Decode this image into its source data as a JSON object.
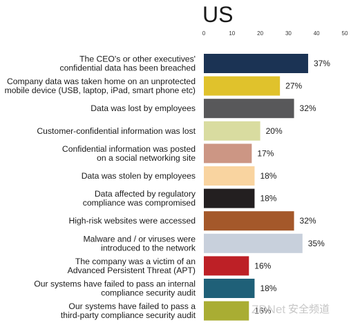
{
  "chart_data": {
    "type": "bar",
    "orientation": "horizontal",
    "title": "US",
    "xlim": [
      0,
      50
    ],
    "xticks": [
      "0",
      "10",
      "20",
      "30",
      "40",
      "50"
    ],
    "value_suffix": "%",
    "categories": [
      [
        "The CEO's or other executives'",
        "confidential data has been breached"
      ],
      [
        "Company data was taken home on an unprotected",
        "mobile device (USB, laptop, iPad, smart phone etc)"
      ],
      [
        "Data was lost by employees"
      ],
      [
        "Customer-confidential information was lost"
      ],
      [
        "Confidential information was posted",
        "on a social networking site"
      ],
      [
        "Data was stolen by employees"
      ],
      [
        "Data affected by regulatory",
        "compliance was compromised"
      ],
      [
        "High-risk websites were accessed"
      ],
      [
        "Malware and / or viruses were",
        "introduced to the network"
      ],
      [
        "The company was a victim of an",
        "Advanced Persistent Threat (APT)"
      ],
      [
        "Our systems have failed to pass an internal",
        "compliance security audit"
      ],
      [
        "Our systems have failed to pass a",
        "third-party compliance security audit"
      ]
    ],
    "values": [
      37,
      27,
      32,
      20,
      17,
      18,
      18,
      32,
      35,
      16,
      18,
      16
    ],
    "colors": [
      "#1b3354",
      "#e0c22c",
      "#58585a",
      "#d9dca0",
      "#cc9684",
      "#f9d4a0",
      "#231f20",
      "#a4582a",
      "#c8d0dc",
      "#bd2026",
      "#1f6078",
      "#a9ad33"
    ],
    "grid": false,
    "legend": "none"
  },
  "watermark": {
    "brand": "ZDNet",
    "section": "安全频道"
  }
}
